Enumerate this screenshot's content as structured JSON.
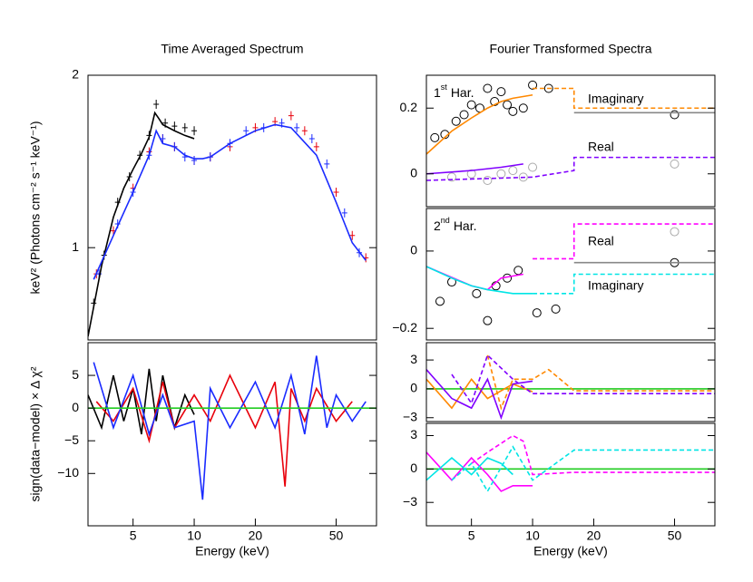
{
  "chart_data": [
    {
      "type": "line",
      "title": "Time Averaged Spectrum",
      "ylabel": "keV² (Photons cm⁻² s⁻¹ keV⁻¹)",
      "xscale": "log",
      "yscale": "log",
      "xlim": [
        3,
        79
      ],
      "ylim": [
        0.69,
        2
      ],
      "yticks": [
        1,
        2
      ],
      "series": [
        {
          "color": "#000000",
          "style": "cross",
          "x": [
            3.2,
            3.6,
            4.2,
            4.8,
            5.4,
            6,
            6.5,
            7.2,
            8,
            9,
            10
          ],
          "values": [
            0.8,
            0.97,
            1.2,
            1.33,
            1.45,
            1.57,
            1.78,
            1.65,
            1.63,
            1.62,
            1.6
          ]
        },
        {
          "color": "#e8000b",
          "style": "cross",
          "x": [
            3.3,
            4,
            5,
            6,
            7,
            8,
            10,
            12,
            15,
            20,
            25,
            30,
            35,
            40,
            50,
            60,
            70
          ],
          "values": [
            0.9,
            1.07,
            1.27,
            1.47,
            1.55,
            1.5,
            1.42,
            1.44,
            1.5,
            1.62,
            1.66,
            1.7,
            1.6,
            1.5,
            1.25,
            1.05,
            0.96
          ]
        },
        {
          "color": "#1a2bff",
          "style": "cross",
          "x": [
            3.4,
            4.2,
            5,
            6,
            7,
            8,
            9,
            10,
            12,
            15,
            18,
            22,
            27,
            32,
            38,
            45,
            55,
            65
          ],
          "values": [
            0.9,
            1.1,
            1.25,
            1.45,
            1.55,
            1.5,
            1.44,
            1.42,
            1.44,
            1.52,
            1.6,
            1.62,
            1.65,
            1.62,
            1.55,
            1.4,
            1.15,
            0.98
          ]
        },
        {
          "color": "#000000",
          "style": "line",
          "x": [
            3,
            3.5,
            4,
            4.5,
            5,
            5.5,
            6,
            6.4,
            6.7,
            7,
            8,
            9,
            10
          ],
          "values": [
            0.7,
            0.93,
            1.13,
            1.27,
            1.37,
            1.46,
            1.56,
            1.72,
            1.68,
            1.64,
            1.6,
            1.57,
            1.55
          ]
        },
        {
          "color": "#1a2bff",
          "style": "line",
          "x": [
            3.2,
            4,
            5,
            6,
            6.5,
            7,
            8,
            9,
            10,
            11,
            12,
            15,
            20,
            25,
            30,
            40,
            50,
            60,
            70
          ],
          "values": [
            0.88,
            1.05,
            1.25,
            1.45,
            1.6,
            1.52,
            1.5,
            1.45,
            1.43,
            1.43,
            1.44,
            1.52,
            1.6,
            1.64,
            1.62,
            1.45,
            1.2,
            1.02,
            0.95
          ]
        }
      ]
    },
    {
      "type": "line",
      "xlabel": "Energy (keV)",
      "ylabel": "sign(data−model) × Δ χ²",
      "xscale": "log",
      "xlim": [
        3,
        79
      ],
      "ylim": [
        -18,
        10
      ],
      "xticks": [
        5,
        10,
        20,
        50
      ],
      "yticks": [
        5,
        0,
        {
          "value": -5,
          "label": "−5"
        },
        {
          "value": -10,
          "label": "−10"
        }
      ],
      "series": [
        {
          "color": "#000000",
          "style": "line",
          "x": [
            3,
            3.5,
            4,
            4.5,
            5,
            5.5,
            6,
            6.5,
            7,
            8,
            9,
            10
          ],
          "values": [
            2,
            -3,
            5,
            -2,
            3,
            -4,
            6,
            -2,
            5,
            -3,
            2,
            -1
          ]
        },
        {
          "color": "#e8000b",
          "style": "line",
          "x": [
            3.3,
            4,
            5,
            6,
            7,
            8,
            10,
            12,
            15,
            20,
            25,
            28,
            30,
            35,
            40,
            50,
            60
          ],
          "values": [
            1,
            -2,
            3,
            -5,
            4,
            -3,
            2,
            -2,
            5,
            -3,
            4,
            -12,
            3,
            -2,
            3,
            -2,
            1
          ]
        },
        {
          "color": "#1a2bff",
          "style": "line",
          "x": [
            3.2,
            4,
            5,
            6,
            7,
            8,
            10,
            11,
            12,
            15,
            20,
            25,
            30,
            35,
            40,
            45,
            50,
            60,
            70
          ],
          "values": [
            7,
            -3,
            5,
            -4,
            2,
            -3,
            -2,
            -14,
            3,
            -3,
            4,
            -3,
            5,
            -4,
            8,
            -3,
            2,
            -2,
            1
          ]
        },
        {
          "color": "#22cc22",
          "style": "line",
          "x": [
            3,
            79
          ],
          "values": [
            0,
            0
          ]
        }
      ]
    },
    {
      "type": "line",
      "title": "Fourier Transformed Spectra",
      "panel_label": [
        "1",
        "st",
        "Har."
      ],
      "labels": [
        {
          "text": "Imaginary",
          "color": "#ff8800"
        },
        {
          "text": "Real",
          "color": "#8000ff"
        }
      ],
      "xscale": "log",
      "xlim": [
        3,
        79
      ],
      "ylim": [
        -0.1,
        0.3
      ],
      "yticks": [
        0.2,
        0
      ],
      "series": [
        {
          "color": "#000000",
          "style": "circle",
          "x": [
            3.3,
            3.7,
            4.2,
            4.6,
            5,
            5.5,
            6,
            6.5,
            7,
            7.5,
            8,
            9,
            10,
            12,
            50
          ],
          "values": [
            0.11,
            0.12,
            0.16,
            0.18,
            0.21,
            0.2,
            0.26,
            0.22,
            0.25,
            0.21,
            0.19,
            0.2,
            0.27,
            0.26,
            0.18
          ]
        },
        {
          "color": "#aaaaaa",
          "style": "circle",
          "x": [
            4,
            5,
            6,
            7,
            8,
            9,
            10,
            50
          ],
          "values": [
            -0.01,
            0,
            -0.02,
            0,
            0.01,
            -0.01,
            0.02,
            0.03
          ]
        },
        {
          "color": "#ff8800",
          "style": "line",
          "x": [
            3,
            4,
            5,
            6,
            7,
            8,
            10
          ],
          "values": [
            0.06,
            0.13,
            0.17,
            0.2,
            0.22,
            0.23,
            0.24
          ]
        },
        {
          "color": "#ff8800",
          "style": "dashed",
          "x": [
            10,
            16,
            16,
            79
          ],
          "values": [
            0.26,
            0.26,
            0.2,
            0.2
          ]
        },
        {
          "color": "#888888",
          "style": "line",
          "x": [
            16,
            79
          ],
          "values": [
            0.186,
            0.186
          ]
        },
        {
          "color": "#8000ff",
          "style": "line",
          "x": [
            3,
            5,
            7,
            9
          ],
          "values": [
            0,
            0.01,
            0.02,
            0.03
          ]
        },
        {
          "color": "#8000ff",
          "style": "dashed",
          "x": [
            3,
            10,
            16,
            16,
            79
          ],
          "values": [
            -0.02,
            -0.01,
            0.01,
            0.05,
            0.05
          ]
        }
      ]
    },
    {
      "type": "line",
      "panel_label": [
        "2",
        "nd",
        "Har."
      ],
      "labels": [
        {
          "text": "Real",
          "color": "#ff00ff"
        },
        {
          "text": "Imaginary",
          "color": "#00e5e5"
        }
      ],
      "xscale": "log",
      "xlim": [
        3,
        79
      ],
      "ylim": [
        -0.23,
        0.11
      ],
      "yticks": [
        0,
        {
          "value": -0.2,
          "label": "−0.2"
        }
      ],
      "series": [
        {
          "color": "#000000",
          "style": "circle",
          "x": [
            3.5,
            4,
            5.3,
            6,
            6.6,
            7.5,
            8.5,
            10.5,
            13,
            50
          ],
          "values": [
            -0.13,
            -0.08,
            -0.11,
            -0.18,
            -0.09,
            -0.07,
            -0.05,
            -0.16,
            -0.15,
            -0.03
          ]
        },
        {
          "color": "#aaaaaa",
          "style": "circle",
          "x": [
            50
          ],
          "values": [
            0.05
          ]
        },
        {
          "color": "#888888",
          "style": "line",
          "x": [
            16,
            79
          ],
          "values": [
            -0.03,
            -0.03
          ]
        },
        {
          "color": "#ff00ff",
          "style": "line",
          "x": [
            3,
            5,
            6,
            7,
            9
          ],
          "values": [
            -0.04,
            -0.09,
            -0.1,
            -0.07,
            -0.06
          ]
        },
        {
          "color": "#ff00ff",
          "style": "dashed",
          "x": [
            10,
            16,
            16,
            79
          ],
          "values": [
            -0.02,
            -0.02,
            0.07,
            0.07
          ]
        },
        {
          "color": "#00e5e5",
          "style": "line",
          "x": [
            3,
            4,
            5,
            6,
            8,
            10
          ],
          "values": [
            -0.04,
            -0.07,
            -0.09,
            -0.1,
            -0.11,
            -0.11
          ]
        },
        {
          "color": "#00e5e5",
          "style": "dashed",
          "x": [
            10,
            16,
            16,
            79
          ],
          "values": [
            -0.11,
            -0.11,
            -0.06,
            -0.06
          ]
        }
      ]
    },
    {
      "type": "line",
      "xscale": "log",
      "xlim": [
        3,
        79
      ],
      "ylim": [
        -3.4,
        4.8
      ],
      "yticks": [
        3,
        0,
        {
          "value": -3,
          "label": "−3"
        }
      ],
      "series": [
        {
          "color": "#22cc22",
          "style": "line",
          "x": [
            3,
            79
          ],
          "values": [
            0,
            0
          ]
        },
        {
          "color": "#ff8800",
          "style": "line",
          "x": [
            3,
            4,
            5,
            6,
            8,
            10
          ],
          "values": [
            1,
            -2,
            1,
            -1,
            0.5,
            -0.3
          ]
        },
        {
          "color": "#ff8800",
          "style": "dashed",
          "x": [
            6,
            7,
            8,
            10,
            12,
            16,
            79
          ],
          "values": [
            3.5,
            -2,
            1,
            1,
            2,
            -0.2,
            -0.2
          ]
        },
        {
          "color": "#8000ff",
          "style": "line",
          "x": [
            3,
            4,
            5,
            6,
            7,
            8,
            10
          ],
          "values": [
            2,
            -1,
            -2,
            1,
            -3,
            0.5,
            0.8
          ]
        },
        {
          "color": "#8000ff",
          "style": "dashed",
          "x": [
            4,
            5,
            6,
            8,
            10,
            16,
            79
          ],
          "values": [
            1.5,
            -1.5,
            3.5,
            1,
            -0.5,
            -0.5,
            -0.5
          ]
        }
      ]
    },
    {
      "type": "line",
      "xlabel": "Energy (keV)",
      "xscale": "log",
      "xlim": [
        3,
        79
      ],
      "ylim": [
        -5.1,
        4.1
      ],
      "xticks": [
        5,
        10,
        20,
        50
      ],
      "yticks": [
        3,
        0,
        {
          "value": -3,
          "label": "−3"
        }
      ],
      "series": [
        {
          "color": "#22cc22",
          "style": "line",
          "x": [
            3,
            79
          ],
          "values": [
            0,
            0
          ]
        },
        {
          "color": "#ff00ff",
          "style": "line",
          "x": [
            3,
            4,
            5,
            6,
            7,
            8,
            10
          ],
          "values": [
            1.5,
            -1,
            1,
            -0.5,
            -2,
            -1.5,
            -1.5
          ]
        },
        {
          "color": "#ff00ff",
          "style": "dashed",
          "x": [
            5,
            6,
            8,
            9,
            10,
            16,
            79
          ],
          "values": [
            0.5,
            1.5,
            3,
            2.5,
            -0.5,
            -0.3,
            -0.3
          ]
        },
        {
          "color": "#00e5e5",
          "style": "line",
          "x": [
            3,
            4,
            5,
            6,
            7,
            8
          ],
          "values": [
            -1,
            1,
            -0.5,
            1,
            0.5,
            -0.5
          ]
        },
        {
          "color": "#00e5e5",
          "style": "dashed",
          "x": [
            4,
            5,
            6,
            8,
            10,
            16,
            79
          ],
          "values": [
            -1,
            0.5,
            -2,
            2,
            -1,
            1.7,
            1.7
          ]
        }
      ]
    }
  ]
}
